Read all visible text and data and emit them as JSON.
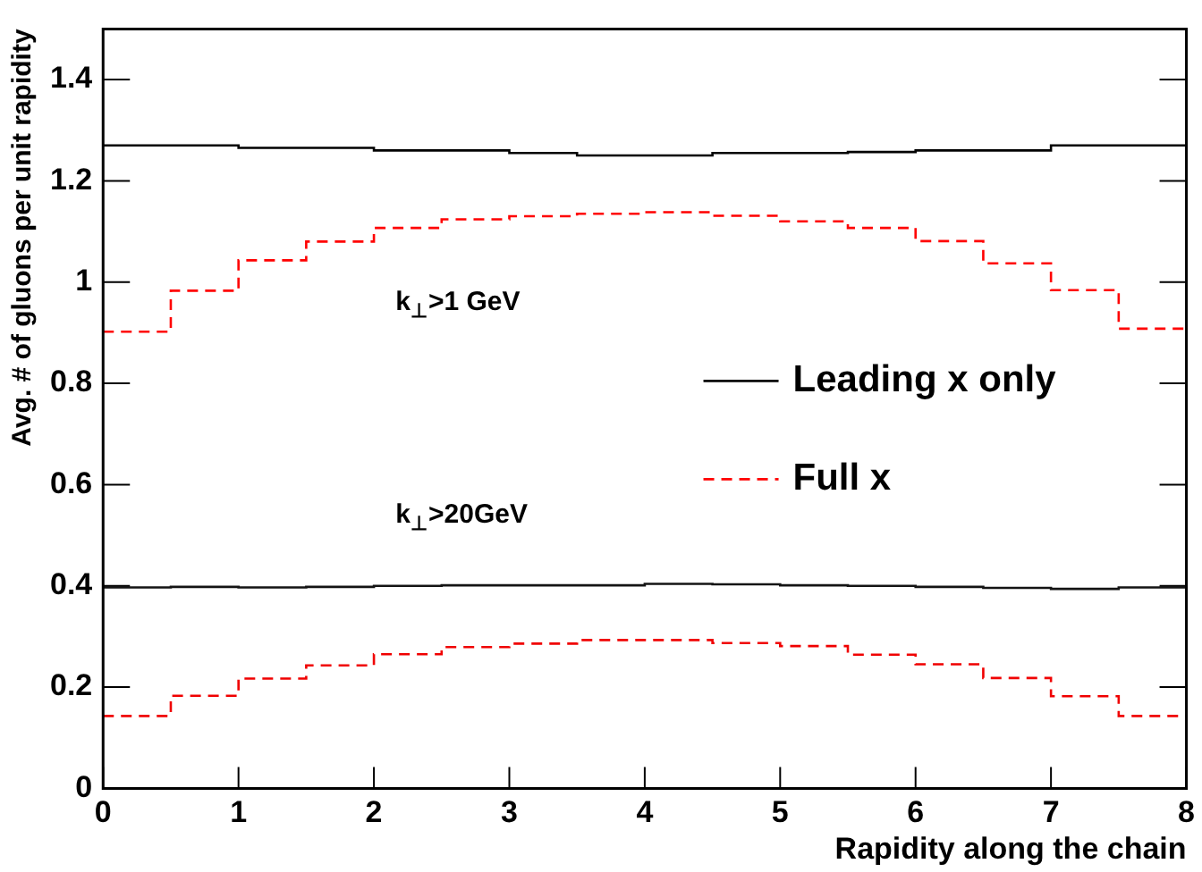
{
  "chart_data": {
    "type": "histogram",
    "xlabel": "Rapidity along the chain",
    "ylabel": "Avg. # of gluons per unit rapidity",
    "bins": [
      0,
      0.5,
      1,
      1.5,
      2,
      2.5,
      3,
      3.5,
      4,
      4.5,
      5,
      5.5,
      6,
      6.5,
      7,
      7.5,
      8
    ],
    "series": [
      {
        "name": "Leading x only",
        "color": "#000000",
        "line_style": "solid",
        "values": [
          1.27,
          1.27,
          1.265,
          1.265,
          1.26,
          1.26,
          1.255,
          1.25,
          1.25,
          1.255,
          1.255,
          1.257,
          1.26,
          1.26,
          1.27,
          1.27
        ]
      },
      {
        "name": "Full x",
        "color": "#ff0000",
        "line_style": "dashed",
        "values": [
          0.902,
          0.983,
          1.043,
          1.08,
          1.107,
          1.124,
          1.13,
          1.135,
          1.138,
          1.131,
          1.12,
          1.107,
          1.081,
          1.037,
          0.984,
          0.908
        ]
      },
      {
        "color": "#141414",
        "line_style": "solid",
        "values": [
          0.397,
          0.398,
          0.397,
          0.398,
          0.4,
          0.401,
          0.401,
          0.401,
          0.404,
          0.403,
          0.401,
          0.4,
          0.398,
          0.396,
          0.394,
          0.397
        ]
      },
      {
        "color": "#f00000",
        "line_style": "dashed",
        "values": [
          0.143,
          0.183,
          0.217,
          0.243,
          0.265,
          0.279,
          0.286,
          0.293,
          0.293,
          0.287,
          0.281,
          0.264,
          0.245,
          0.218,
          0.182,
          0.143
        ]
      }
    ],
    "annotations": [
      "k$_{⊥}$>1 GeV",
      "k$_{⊥}$>20GeV"
    ],
    "xlim": [
      0,
      8
    ],
    "xticks": [
      0,
      1,
      2,
      3,
      4,
      5,
      6,
      7,
      8
    ],
    "ylim": [
      0,
      1.5
    ],
    "yticks": [
      0,
      0.2,
      0.4,
      0.6,
      0.8,
      1,
      1.2,
      1.4
    ],
    "grid": false,
    "legend": "right"
  }
}
